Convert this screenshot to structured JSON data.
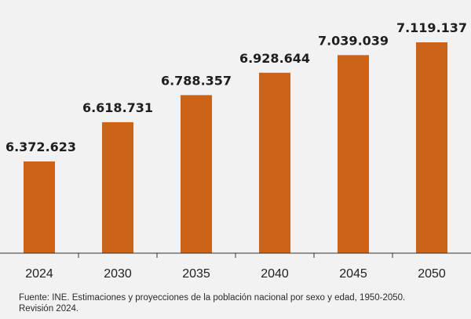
{
  "chart_data": {
    "type": "bar",
    "categories": [
      "2024",
      "2030",
      "2035",
      "2040",
      "2045",
      "2050"
    ],
    "values": [
      6372623,
      6618731,
      6788357,
      6928644,
      7039039,
      7119137
    ],
    "value_labels": [
      "6.372.623",
      "6.618.731",
      "6.788.357",
      "6.928.644",
      "7.039.039",
      "7.119.137"
    ],
    "title": "",
    "xlabel": "",
    "ylabel": "",
    "bar_color": "#cb6418",
    "grid": false,
    "legend": "none"
  },
  "source": {
    "line1": "Fuente: INE. Estimaciones y proyecciones de la población nacional por sexo y edad, 1950-2050.",
    "line2": "Revisión 2024."
  }
}
